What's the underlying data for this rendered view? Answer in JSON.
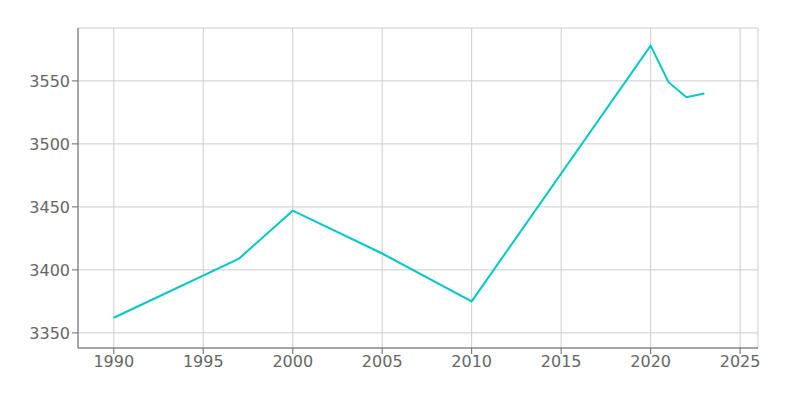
{
  "chart_data": {
    "type": "line",
    "x": [
      1990,
      1997,
      2000,
      2005,
      2010,
      2020,
      2021,
      2022,
      2023
    ],
    "values": [
      3362,
      3409,
      3447,
      3413,
      3375,
      3578,
      3549,
      3537,
      3540
    ],
    "color": "#00C8C8",
    "xlim": [
      1988,
      2026
    ],
    "ylim": [
      3338,
      3592
    ],
    "xticks": [
      1990,
      1995,
      2000,
      2005,
      2010,
      2015,
      2020,
      2025
    ],
    "yticks": [
      3350,
      3400,
      3450,
      3500,
      3550
    ],
    "grid": true
  }
}
